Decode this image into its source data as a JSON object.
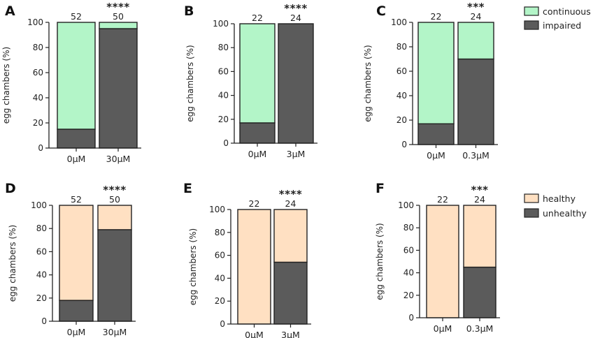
{
  "chart_data": [
    {
      "id": "A",
      "type": "bar",
      "stacked": true,
      "ylabel": "egg chambers (%)",
      "ylim": [
        0,
        100
      ],
      "yticks": [
        0,
        20,
        40,
        60,
        80,
        100
      ],
      "categories": [
        "0μM",
        "30μM"
      ],
      "series": [
        {
          "name": "impaired",
          "color": "#5b5b5b",
          "values": [
            15,
            95
          ]
        },
        {
          "name": "continuous",
          "color": "#b3f5c8",
          "values": [
            85,
            5
          ]
        }
      ],
      "n": [
        "52",
        "50"
      ],
      "significance": "****"
    },
    {
      "id": "B",
      "type": "bar",
      "stacked": true,
      "ylabel": "egg chambers (%)",
      "ylim": [
        0,
        100
      ],
      "yticks": [
        0,
        20,
        40,
        60,
        80,
        100
      ],
      "categories": [
        "0μM",
        "3μM"
      ],
      "series": [
        {
          "name": "impaired",
          "color": "#5b5b5b",
          "values": [
            17,
            100
          ]
        },
        {
          "name": "continuous",
          "color": "#b3f5c8",
          "values": [
            83,
            0
          ]
        }
      ],
      "n": [
        "22",
        "24"
      ],
      "significance": "****"
    },
    {
      "id": "C",
      "type": "bar",
      "stacked": true,
      "ylabel": "egg chambers (%)",
      "ylim": [
        0,
        100
      ],
      "yticks": [
        0,
        20,
        40,
        60,
        80,
        100
      ],
      "categories": [
        "0μM",
        "0.3μM"
      ],
      "series": [
        {
          "name": "impaired",
          "color": "#5b5b5b",
          "values": [
            17,
            70
          ]
        },
        {
          "name": "continuous",
          "color": "#b3f5c8",
          "values": [
            83,
            30
          ]
        }
      ],
      "n": [
        "22",
        "24"
      ],
      "significance": "***",
      "legend": {
        "placement": "top-right",
        "entries": [
          {
            "label": "continuous",
            "color": "#b3f5c8"
          },
          {
            "label": "impaired",
            "color": "#5b5b5b"
          }
        ]
      }
    },
    {
      "id": "D",
      "type": "bar",
      "stacked": true,
      "ylabel": "egg chambers (%)",
      "ylim": [
        0,
        100
      ],
      "yticks": [
        0,
        20,
        40,
        60,
        80,
        100
      ],
      "categories": [
        "0μM",
        "30μM"
      ],
      "series": [
        {
          "name": "unhealthy",
          "color": "#5b5b5b",
          "values": [
            18,
            79
          ]
        },
        {
          "name": "healthy",
          "color": "#ffe0c2",
          "values": [
            82,
            21
          ]
        }
      ],
      "n": [
        "52",
        "50"
      ],
      "significance": "****"
    },
    {
      "id": "E",
      "type": "bar",
      "stacked": true,
      "ylabel": "egg chambers (%)",
      "ylim": [
        0,
        100
      ],
      "yticks": [
        0,
        20,
        40,
        60,
        80,
        100
      ],
      "categories": [
        "0μM",
        "3μM"
      ],
      "series": [
        {
          "name": "unhealthy",
          "color": "#5b5b5b",
          "values": [
            0,
            54
          ]
        },
        {
          "name": "healthy",
          "color": "#ffe0c2",
          "values": [
            100,
            46
          ]
        }
      ],
      "n": [
        "22",
        "24"
      ],
      "significance": "****"
    },
    {
      "id": "F",
      "type": "bar",
      "stacked": true,
      "ylabel": "egg chambers (%)",
      "ylim": [
        0,
        100
      ],
      "yticks": [
        0,
        20,
        40,
        60,
        80,
        100
      ],
      "categories": [
        "0μM",
        "0.3μM"
      ],
      "series": [
        {
          "name": "unhealthy",
          "color": "#5b5b5b",
          "values": [
            0,
            45
          ]
        },
        {
          "name": "healthy",
          "color": "#ffe0c2",
          "values": [
            100,
            55
          ]
        }
      ],
      "n": [
        "22",
        "24"
      ],
      "significance": "***",
      "legend": {
        "placement": "top-right",
        "entries": [
          {
            "label": "healthy",
            "color": "#ffe0c2"
          },
          {
            "label": "unhealthy",
            "color": "#5b5b5b"
          }
        ]
      }
    }
  ]
}
